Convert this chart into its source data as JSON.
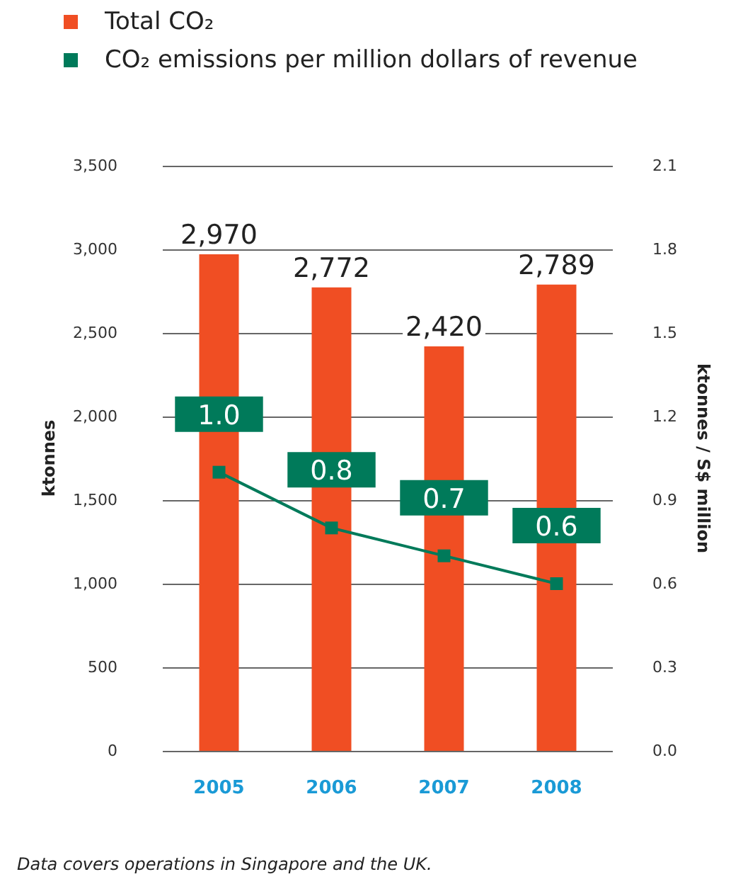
{
  "chart_data": {
    "type": "bar",
    "categories": [
      "2005",
      "2006",
      "2007",
      "2008"
    ],
    "series": [
      {
        "name": "Total CO₂",
        "color": "#f04e23",
        "values": [
          2970,
          2772,
          2420,
          2789
        ],
        "value_labels": [
          "2,970",
          "2,772",
          "2,420",
          "2,789"
        ]
      },
      {
        "name": "CO₂ emissions per million dollars of revenue",
        "type": "line",
        "axis": "y2",
        "color": "#007a5a",
        "values": [
          1.0,
          0.8,
          0.7,
          0.6
        ],
        "value_labels": [
          "1.0",
          "0.8",
          "0.7",
          "0.6"
        ]
      }
    ],
    "ylabel": "ktonnes",
    "y2label": "ktonnes / S$ million",
    "ylim": [
      0,
      3500
    ],
    "yticks": [
      0,
      500,
      {
        "value": 1000,
        "label": "1,000"
      },
      {
        "value": 1500,
        "label": "1,500"
      },
      {
        "value": 2000,
        "label": "2,000"
      },
      {
        "value": 2500,
        "label": "2,500"
      },
      {
        "value": 3000,
        "label": "3,000"
      },
      {
        "value": 3500,
        "label": "3,500"
      }
    ],
    "y2lim": [
      0,
      2.1
    ],
    "y2ticks": [
      {
        "value": 0,
        "label": "0.0"
      },
      0.3,
      0.6,
      0.9,
      1.2,
      1.5,
      1.8,
      2.1
    ],
    "grid": "y",
    "legend": "top left",
    "marker": "square",
    "line_style": "solid",
    "annotations": [
      "Data covers operations in Singapore and the UK."
    ]
  }
}
